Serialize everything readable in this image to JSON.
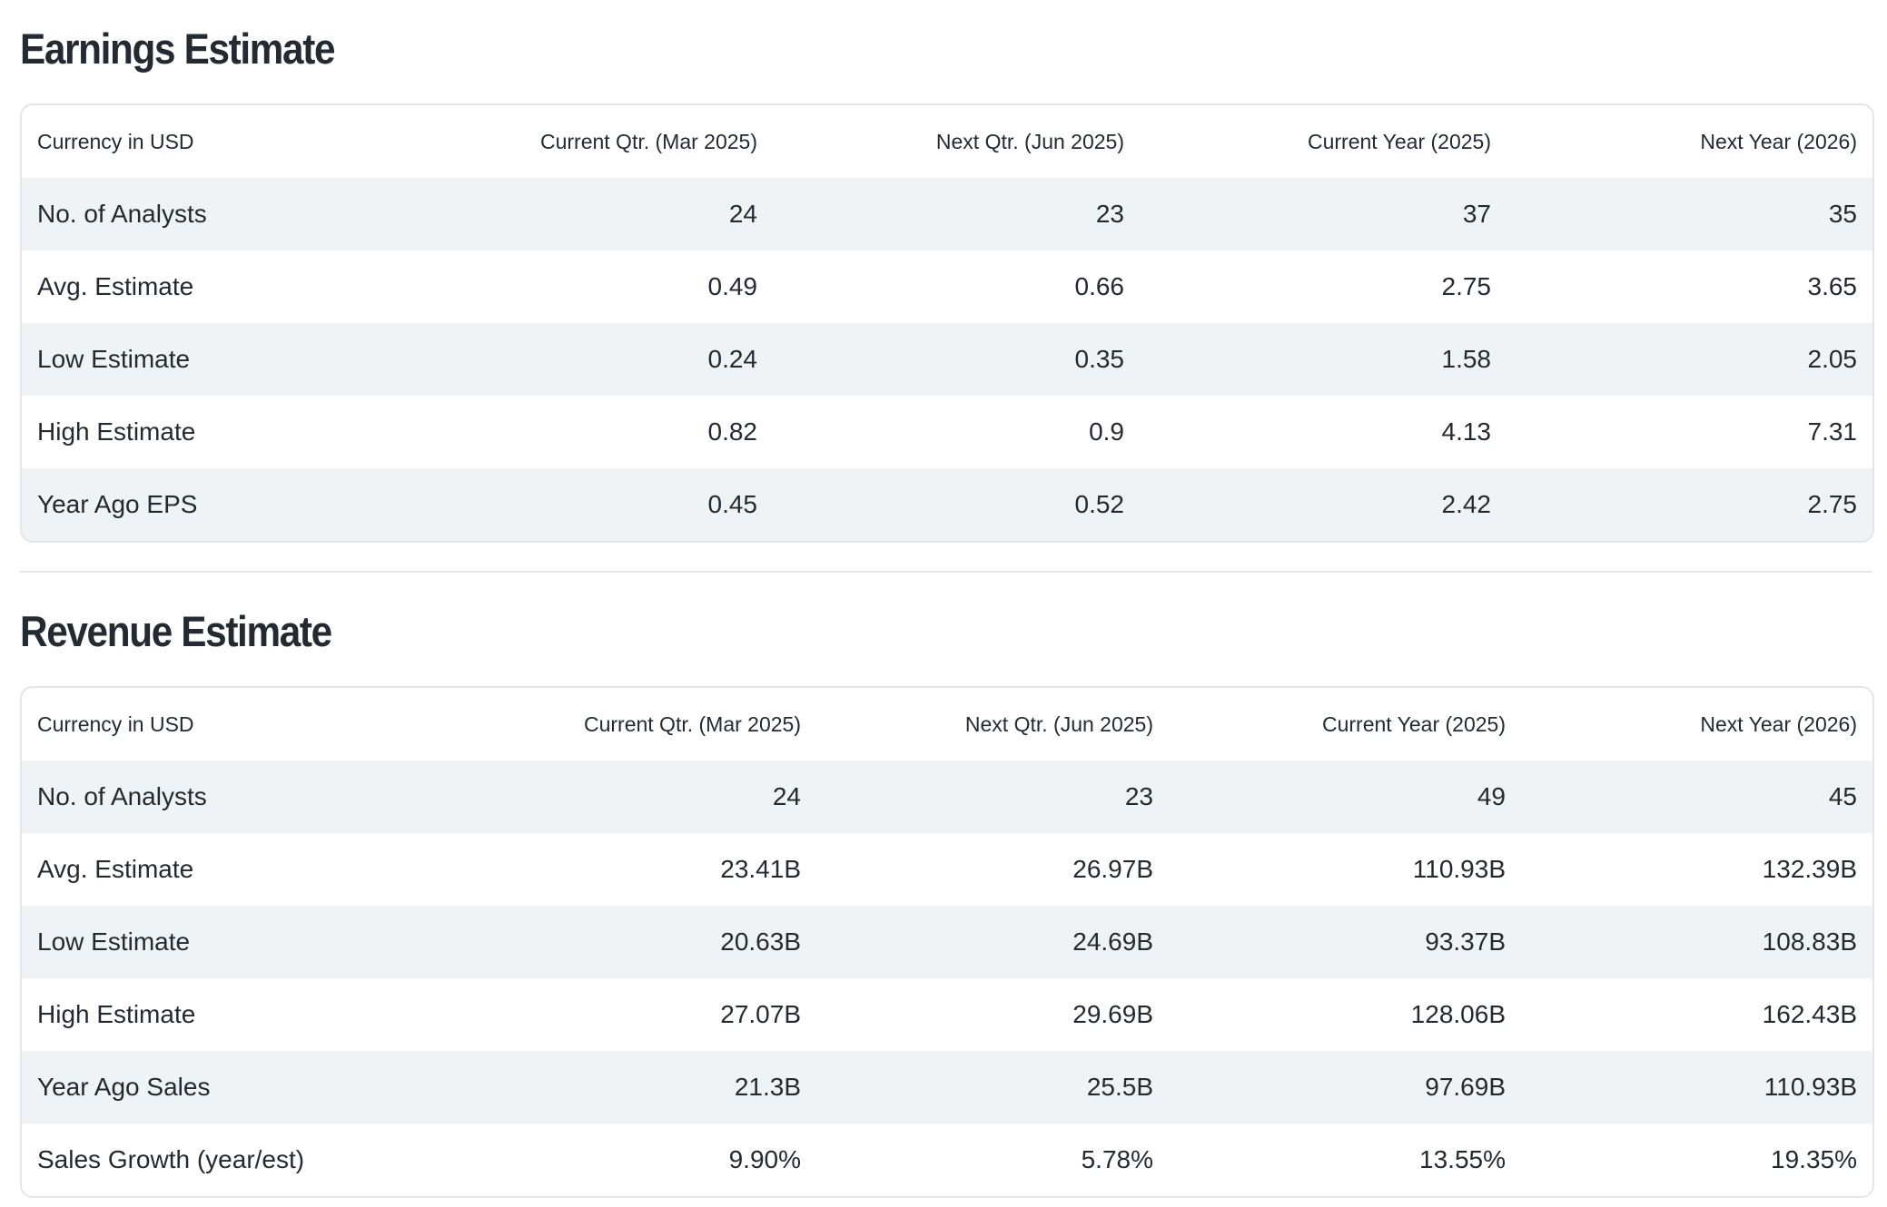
{
  "earnings": {
    "title": "Earnings Estimate",
    "headers": [
      "Currency in USD",
      "Current Qtr. (Mar 2025)",
      "Next Qtr. (Jun 2025)",
      "Current Year (2025)",
      "Next Year (2026)"
    ],
    "rows": [
      [
        "No. of Analysts",
        "24",
        "23",
        "37",
        "35"
      ],
      [
        "Avg. Estimate",
        "0.49",
        "0.66",
        "2.75",
        "3.65"
      ],
      [
        "Low Estimate",
        "0.24",
        "0.35",
        "1.58",
        "2.05"
      ],
      [
        "High Estimate",
        "0.82",
        "0.9",
        "4.13",
        "7.31"
      ],
      [
        "Year Ago EPS",
        "0.45",
        "0.52",
        "2.42",
        "2.75"
      ]
    ]
  },
  "revenue": {
    "title": "Revenue Estimate",
    "headers": [
      "Currency in USD",
      "Current Qtr. (Mar 2025)",
      "Next Qtr. (Jun 2025)",
      "Current Year (2025)",
      "Next Year (2026)"
    ],
    "rows": [
      [
        "No. of Analysts",
        "24",
        "23",
        "49",
        "45"
      ],
      [
        "Avg. Estimate",
        "23.41B",
        "26.97B",
        "110.93B",
        "132.39B"
      ],
      [
        "Low Estimate",
        "20.63B",
        "24.69B",
        "93.37B",
        "108.83B"
      ],
      [
        "High Estimate",
        "27.07B",
        "29.69B",
        "128.06B",
        "162.43B"
      ],
      [
        "Year Ago Sales",
        "21.3B",
        "25.5B",
        "97.69B",
        "110.93B"
      ],
      [
        "Sales Growth (year/est)",
        "9.90%",
        "5.78%",
        "13.55%",
        "19.35%"
      ]
    ]
  }
}
